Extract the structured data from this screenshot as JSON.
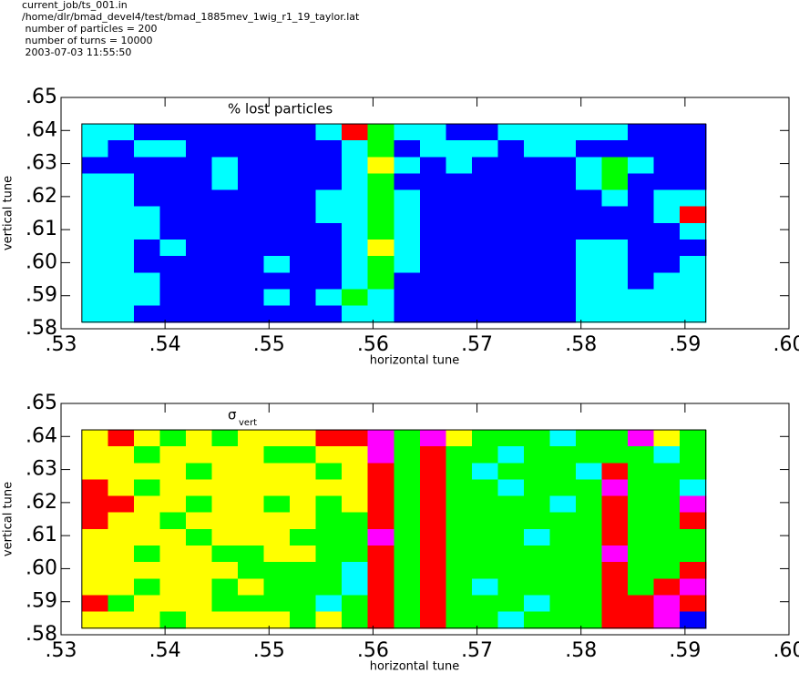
{
  "header": {
    "lines": [
      "current_job/ts_001.in",
      "/home/dlr/bmad_devel4/test/bmad_1885mev_1wig_r1_19_taylor.lat",
      " number of particles = 200",
      " number of turns = 10000",
      " 2003-07-03 11:55:50"
    ]
  },
  "chart_data": [
    {
      "type": "heatmap",
      "title": "% lost particles",
      "xlabel": "horizontal tune",
      "ylabel": "vertical tune",
      "xlim": [
        0.53,
        0.6
      ],
      "ylim": [
        0.58,
        0.65
      ],
      "xticks": [
        {
          "value": 0.53,
          "label": ".53"
        },
        {
          "value": 0.54,
          "label": ".54"
        },
        {
          "value": 0.55,
          "label": ".55"
        },
        {
          "value": 0.56,
          "label": ".56"
        },
        {
          "value": 0.57,
          "label": ".57"
        },
        {
          "value": 0.58,
          "label": ".58"
        },
        {
          "value": 0.59,
          "label": ".59"
        },
        {
          "value": 0.6,
          "label": ".60"
        }
      ],
      "yticks": [
        {
          "value": 0.58,
          "label": ".58"
        },
        {
          "value": 0.59,
          "label": ".59"
        },
        {
          "value": 0.6,
          "label": ".60"
        },
        {
          "value": 0.61,
          "label": ".61"
        },
        {
          "value": 0.62,
          "label": ".62"
        },
        {
          "value": 0.63,
          "label": ".63"
        },
        {
          "value": 0.64,
          "label": ".64"
        },
        {
          "value": 0.65,
          "label": ".65"
        }
      ],
      "x_extent": [
        0.532,
        0.592
      ],
      "y_extent": [
        0.642,
        0.582
      ],
      "level_colors": [
        "#0000ff",
        "#00ffff",
        "#00ff00",
        "#ffff00",
        "#ff0000"
      ],
      "z": [
        [
          1,
          1,
          0,
          0,
          0,
          0,
          0,
          0,
          0,
          1,
          4,
          2,
          1,
          1,
          0,
          0,
          1,
          1,
          1,
          1,
          1,
          0,
          0,
          0
        ],
        [
          1,
          0,
          1,
          1,
          0,
          0,
          0,
          0,
          0,
          0,
          1,
          2,
          0,
          1,
          1,
          1,
          0,
          1,
          1,
          0,
          0,
          0,
          0,
          0
        ],
        [
          0,
          0,
          0,
          0,
          0,
          1,
          0,
          0,
          0,
          0,
          1,
          3,
          1,
          0,
          1,
          0,
          0,
          0,
          0,
          1,
          2,
          1,
          0,
          0
        ],
        [
          1,
          1,
          0,
          0,
          0,
          1,
          0,
          0,
          0,
          0,
          1,
          2,
          0,
          0,
          0,
          0,
          0,
          0,
          0,
          1,
          2,
          0,
          0,
          0
        ],
        [
          1,
          1,
          0,
          0,
          0,
          0,
          0,
          0,
          0,
          1,
          1,
          2,
          1,
          0,
          0,
          0,
          0,
          0,
          0,
          0,
          1,
          0,
          1,
          1
        ],
        [
          1,
          1,
          1,
          0,
          0,
          0,
          0,
          0,
          0,
          1,
          1,
          2,
          1,
          0,
          0,
          0,
          0,
          0,
          0,
          0,
          0,
          0,
          1,
          4
        ],
        [
          1,
          1,
          1,
          0,
          0,
          0,
          0,
          0,
          0,
          0,
          1,
          2,
          1,
          0,
          0,
          0,
          0,
          0,
          0,
          0,
          0,
          0,
          0,
          1
        ],
        [
          1,
          1,
          0,
          1,
          0,
          0,
          0,
          0,
          0,
          0,
          1,
          3,
          1,
          0,
          0,
          0,
          0,
          0,
          0,
          1,
          1,
          0,
          0,
          0
        ],
        [
          1,
          1,
          0,
          0,
          0,
          0,
          0,
          1,
          0,
          0,
          1,
          2,
          1,
          0,
          0,
          0,
          0,
          0,
          0,
          1,
          1,
          0,
          0,
          1
        ],
        [
          1,
          1,
          1,
          0,
          0,
          0,
          0,
          0,
          0,
          0,
          1,
          2,
          0,
          0,
          0,
          0,
          0,
          0,
          0,
          1,
          1,
          0,
          1,
          1
        ],
        [
          1,
          1,
          1,
          0,
          0,
          0,
          0,
          1,
          0,
          1,
          2,
          1,
          0,
          0,
          0,
          0,
          0,
          0,
          0,
          1,
          1,
          1,
          1,
          1
        ],
        [
          1,
          1,
          0,
          0,
          0,
          0,
          0,
          0,
          0,
          0,
          1,
          1,
          0,
          0,
          0,
          0,
          0,
          0,
          0,
          1,
          1,
          1,
          1,
          1
        ]
      ]
    },
    {
      "type": "heatmap",
      "title": "σ",
      "title_subscript": "vert",
      "xlabel": "horizontal tune",
      "ylabel": "vertical tune",
      "xlim": [
        0.53,
        0.6
      ],
      "ylim": [
        0.58,
        0.65
      ],
      "xticks": [
        {
          "value": 0.53,
          "label": ".53"
        },
        {
          "value": 0.54,
          "label": ".54"
        },
        {
          "value": 0.55,
          "label": ".55"
        },
        {
          "value": 0.56,
          "label": ".56"
        },
        {
          "value": 0.57,
          "label": ".57"
        },
        {
          "value": 0.58,
          "label": ".58"
        },
        {
          "value": 0.59,
          "label": ".59"
        },
        {
          "value": 0.6,
          "label": ".60"
        }
      ],
      "yticks": [
        {
          "value": 0.58,
          "label": ".58"
        },
        {
          "value": 0.59,
          "label": ".59"
        },
        {
          "value": 0.6,
          "label": ".60"
        },
        {
          "value": 0.61,
          "label": ".61"
        },
        {
          "value": 0.62,
          "label": ".62"
        },
        {
          "value": 0.63,
          "label": ".63"
        },
        {
          "value": 0.64,
          "label": ".64"
        },
        {
          "value": 0.65,
          "label": ".65"
        }
      ],
      "x_extent": [
        0.532,
        0.592
      ],
      "y_extent": [
        0.642,
        0.582
      ],
      "level_colors": [
        "#ffff00",
        "#00ff00",
        "#00ffff",
        "#ff0000",
        "#ff00ff",
        "#000000",
        "#0000ff"
      ],
      "z": [
        [
          0,
          3,
          0,
          1,
          0,
          1,
          0,
          0,
          0,
          3,
          3,
          4,
          1,
          4,
          0,
          1,
          1,
          1,
          2,
          1,
          1,
          4,
          0,
          1
        ],
        [
          0,
          0,
          1,
          0,
          0,
          0,
          0,
          1,
          1,
          0,
          0,
          4,
          1,
          3,
          1,
          1,
          2,
          1,
          1,
          1,
          1,
          1,
          2,
          1
        ],
        [
          0,
          0,
          0,
          0,
          1,
          0,
          0,
          0,
          0,
          1,
          0,
          3,
          1,
          3,
          1,
          2,
          1,
          1,
          1,
          2,
          3,
          1,
          1,
          1
        ],
        [
          3,
          0,
          1,
          0,
          0,
          0,
          0,
          0,
          0,
          0,
          0,
          3,
          1,
          3,
          1,
          1,
          2,
          1,
          1,
          1,
          4,
          1,
          1,
          2
        ],
        [
          3,
          3,
          0,
          0,
          1,
          0,
          0,
          1,
          0,
          1,
          0,
          3,
          1,
          3,
          1,
          1,
          1,
          1,
          2,
          1,
          3,
          1,
          1,
          4
        ],
        [
          3,
          0,
          0,
          1,
          0,
          0,
          0,
          0,
          0,
          1,
          1,
          3,
          1,
          3,
          1,
          1,
          1,
          1,
          1,
          1,
          3,
          1,
          1,
          3
        ],
        [
          0,
          0,
          0,
          0,
          1,
          0,
          0,
          0,
          1,
          1,
          1,
          4,
          1,
          3,
          1,
          1,
          1,
          2,
          1,
          1,
          3,
          1,
          1,
          1
        ],
        [
          0,
          0,
          1,
          0,
          0,
          1,
          1,
          0,
          0,
          1,
          1,
          3,
          1,
          3,
          1,
          1,
          1,
          1,
          1,
          1,
          4,
          1,
          1,
          1
        ],
        [
          0,
          0,
          0,
          0,
          0,
          0,
          1,
          1,
          1,
          1,
          2,
          3,
          1,
          3,
          1,
          1,
          1,
          1,
          1,
          1,
          3,
          1,
          1,
          3
        ],
        [
          0,
          0,
          1,
          0,
          0,
          1,
          0,
          1,
          1,
          1,
          2,
          3,
          1,
          3,
          1,
          2,
          1,
          1,
          1,
          1,
          3,
          1,
          3,
          4
        ],
        [
          3,
          1,
          0,
          0,
          0,
          1,
          1,
          1,
          1,
          2,
          1,
          3,
          1,
          3,
          1,
          1,
          1,
          2,
          1,
          1,
          3,
          3,
          4,
          3
        ],
        [
          0,
          0,
          0,
          1,
          0,
          0,
          0,
          0,
          1,
          0,
          1,
          3,
          1,
          3,
          1,
          1,
          2,
          1,
          1,
          1,
          3,
          3,
          4,
          6
        ]
      ]
    }
  ]
}
